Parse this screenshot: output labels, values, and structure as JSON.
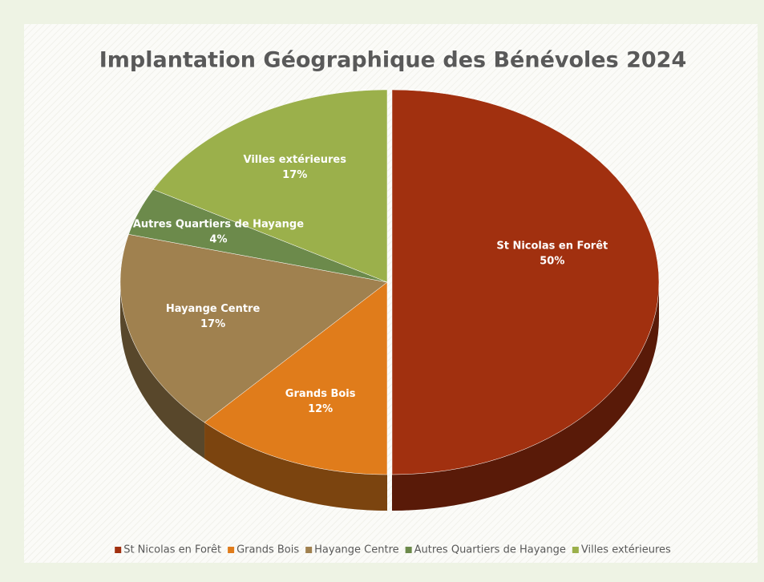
{
  "chart_data": {
    "type": "pie",
    "title": "Implantation  Géographique des Bénévoles 2024",
    "categories": [
      "St Nicolas en Forêt",
      "Grands Bois",
      "Hayange Centre",
      "Autres Quartiers de Hayange",
      "Villes extérieures"
    ],
    "values": [
      50,
      12,
      17,
      4,
      17
    ],
    "value_labels": [
      "50%",
      "12%",
      "17%",
      "4%",
      "17%"
    ],
    "colors": [
      "#a1300f",
      "#e07c1b",
      "#a0814f",
      "#6c8a4b",
      "#9bb04b"
    ],
    "legend": "bottom"
  }
}
